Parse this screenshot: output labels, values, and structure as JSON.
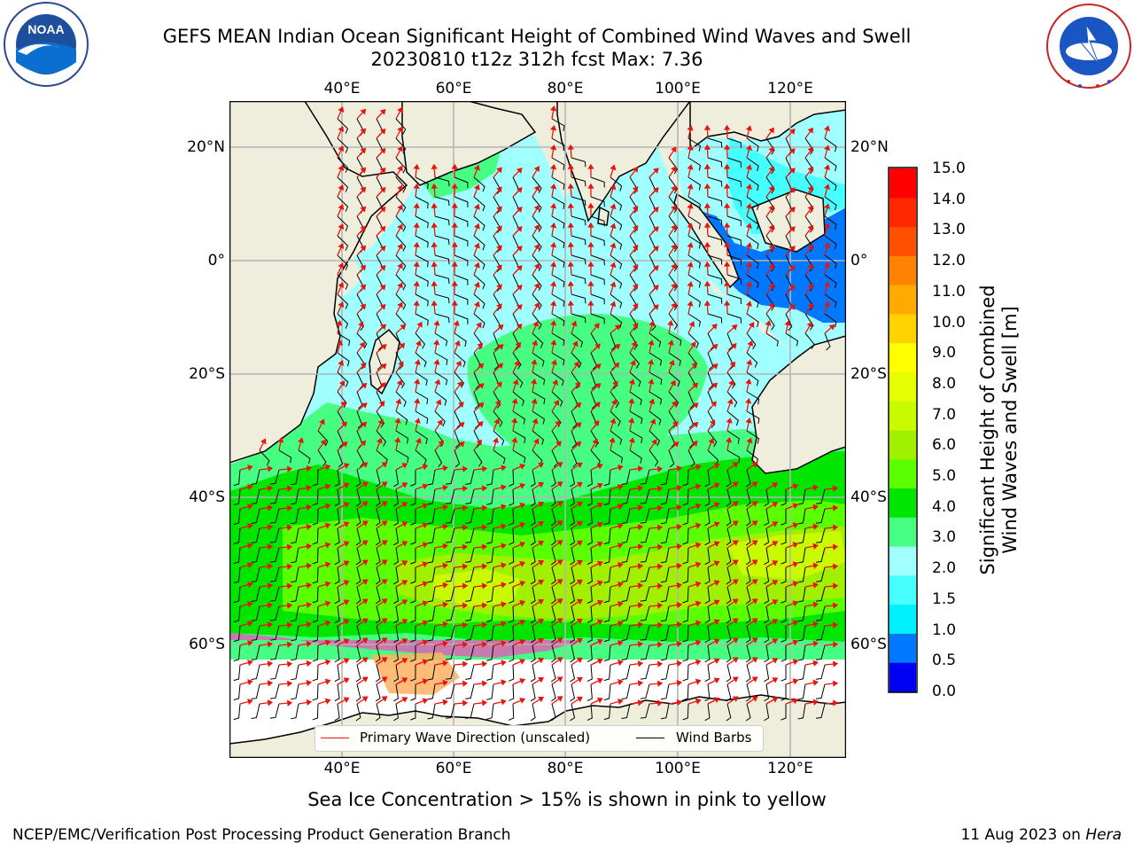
{
  "title": {
    "line1": "GEFS MEAN Indian Ocean Significant Height of Combined Wind Waves and Swell",
    "line2": "20230810 t12z 312h fcst   Max: 7.36"
  },
  "map": {
    "lon_labels": [
      "40°E",
      "60°E",
      "80°E",
      "100°E",
      "120°E"
    ],
    "lat_labels": [
      "20°N",
      "0°",
      "20°S",
      "40°S",
      "60°S"
    ],
    "colors": {
      "land": "#efeedd",
      "ocean_ice": "#ffffff",
      "arrow": "#e8140c",
      "barb": "#000000",
      "gridline": "#b4b4b4"
    }
  },
  "colorbar": {
    "ticks": [
      "15.0",
      "14.0",
      "13.0",
      "12.0",
      "11.0",
      "10.0",
      "9.0",
      "8.0",
      "7.0",
      "6.0",
      "5.0",
      "4.0",
      "3.0",
      "2.0",
      "1.5",
      "1.0",
      "0.5",
      "0.0"
    ],
    "label_line1": "Significant Height of Combined",
    "label_line2": "Wind Waves and Swell [m]",
    "colors": [
      "#0000f2",
      "#0078ff",
      "#00f0ff",
      "#46ffff",
      "#a0ffff",
      "#46ff82",
      "#00e600",
      "#5aff00",
      "#a0f000",
      "#c8fa00",
      "#e6ff00",
      "#ffff00",
      "#ffd200",
      "#ffaa00",
      "#ff8200",
      "#ff5000",
      "#ff2800",
      "#ff0000"
    ]
  },
  "legend": {
    "wave_direction": "Primary Wave Direction (unscaled)",
    "wind_barbs": "Wind Barbs"
  },
  "footer": {
    "note": "Sea Ice Concentration > 15% is shown in pink to yellow",
    "credit": "NCEP/EMC/Verification Post Processing Product Generation Branch",
    "date": "11 Aug 2023 on ",
    "machine": "Hera"
  },
  "logos": {
    "noaa_text": "NOAA",
    "noaa_ring": "NATIONAL OCEANIC AND ATMOSPHERIC ADMINISTRATION · U.S. DEPARTMENT OF COMMERCE",
    "nws_ring": "NATIONAL WEATHER SERVICE"
  }
}
